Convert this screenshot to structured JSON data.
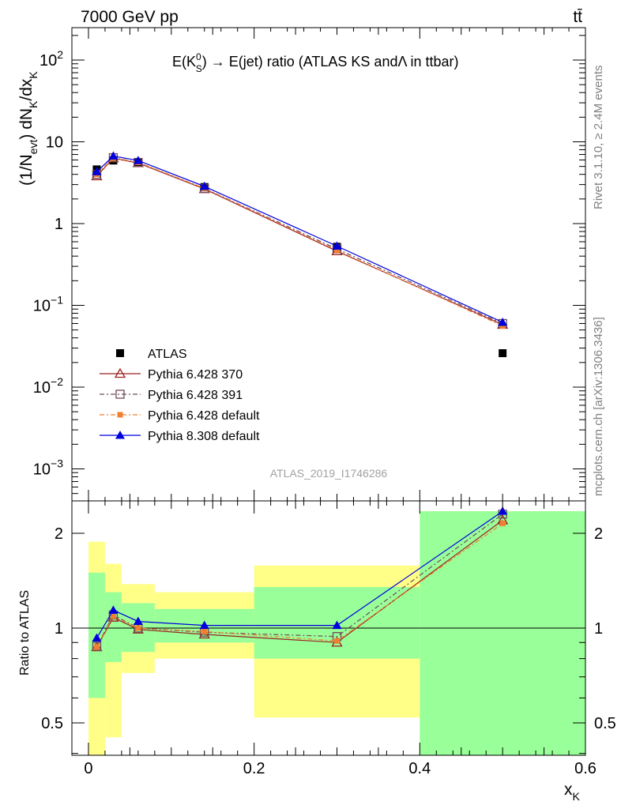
{
  "header": {
    "left": "7000 GeV pp",
    "right": "tt̄"
  },
  "side_labels": {
    "rivet": "Rivet 3.1.10, ≥ 2.4M events",
    "mcplots": "mcplots.cern.ch [arXiv:1306.3436]"
  },
  "chart_data": [
    {
      "type": "scatter",
      "panel": "main",
      "title": "E(K⁰_S) → E(jet) ratio (ATLAS KS and Λ in ttbar)",
      "title_parts": {
        "prefix": "E(K",
        "sup": "0",
        "sub": "S",
        "suffix": ") → E(jet) ratio (ATLAS KS andΛ in ttbar)"
      },
      "ylabel": "(1/N_evt) dN_K/dx_K",
      "ylabel_parts": {
        "a": "(1/N",
        "sub1": "evt",
        "b": ") dN",
        "sub2": "K",
        "c": "/dx",
        "sub3": "K"
      },
      "yscale": "log",
      "ylim": [
        0.0003,
        250
      ],
      "xlim": [
        -0.02,
        0.6
      ],
      "y_ticks": [
        {
          "v": 100,
          "base": "10",
          "exp": "2"
        },
        {
          "v": 10,
          "base": "10",
          "exp": ""
        },
        {
          "v": 1,
          "base": "1",
          "exp": ""
        },
        {
          "v": 0.1,
          "base": "10",
          "exp": "−1"
        },
        {
          "v": 0.01,
          "base": "10",
          "exp": "−2"
        },
        {
          "v": 0.001,
          "base": "10",
          "exp": "−3"
        }
      ],
      "watermark": "ATLAS_2019_I1746286",
      "legend_position": "bottom-left",
      "series": [
        {
          "name": "ATLAS",
          "color": "#000000",
          "marker": "square-filled",
          "dash": "none",
          "x": [
            0.01,
            0.03,
            0.06,
            0.14,
            0.3,
            0.5
          ],
          "y": [
            4.6,
            5.9,
            5.6,
            2.8,
            0.52,
            0.026
          ]
        },
        {
          "name": "Pythia 6.428 370",
          "color": "#9b2020",
          "marker": "triangle-open",
          "dash": "solid",
          "x": [
            0.01,
            0.03,
            0.06,
            0.14,
            0.3,
            0.5
          ],
          "y": [
            3.8,
            6.3,
            5.5,
            2.65,
            0.46,
            0.058
          ]
        },
        {
          "name": "Pythia 6.428 391",
          "color": "#6e4a5a",
          "marker": "square-open",
          "dash": "dashdot",
          "x": [
            0.01,
            0.03,
            0.06,
            0.14,
            0.3,
            0.5
          ],
          "y": [
            4.0,
            6.4,
            5.6,
            2.7,
            0.49,
            0.06
          ]
        },
        {
          "name": "Pythia 6.428 default",
          "color": "#f08030",
          "marker": "square-filled-small",
          "dash": "dashdot",
          "x": [
            0.01,
            0.03,
            0.06,
            0.14,
            0.3,
            0.5
          ],
          "y": [
            4.0,
            6.3,
            5.6,
            2.7,
            0.47,
            0.056
          ]
        },
        {
          "name": "Pythia 8.308 default",
          "color": "#0000dd",
          "marker": "triangle-filled",
          "dash": "solid",
          "x": [
            0.01,
            0.03,
            0.06,
            0.14,
            0.3,
            0.5
          ],
          "y": [
            4.3,
            6.7,
            5.9,
            2.85,
            0.53,
            0.062
          ]
        }
      ]
    },
    {
      "type": "line",
      "panel": "ratio",
      "ylabel": "Ratio to ATLAS",
      "xlabel": "x_K",
      "xlabel_parts": {
        "a": "x",
        "sub": "K"
      },
      "yscale": "log",
      "ylim": [
        0.35,
        2.35
      ],
      "xlim": [
        -0.02,
        0.6
      ],
      "y_ticks": [
        {
          "v": 0.5,
          "label": "0.5"
        },
        {
          "v": 1,
          "label": "1"
        },
        {
          "v": 2,
          "label": "2"
        }
      ],
      "x_ticks": [
        {
          "v": 0,
          "label": "0"
        },
        {
          "v": 0.2,
          "label": "0.2"
        },
        {
          "v": 0.4,
          "label": "0.4"
        },
        {
          "v": 0.6,
          "label": "0.6"
        }
      ],
      "bands": [
        {
          "x0": 0.0,
          "x1": 0.02,
          "yellow": [
            0.3,
            1.88
          ],
          "green": [
            0.6,
            1.5
          ]
        },
        {
          "x0": 0.02,
          "x1": 0.04,
          "yellow": [
            0.45,
            1.6
          ],
          "green": [
            0.78,
            1.3
          ]
        },
        {
          "x0": 0.04,
          "x1": 0.08,
          "yellow": [
            0.72,
            1.38
          ],
          "green": [
            0.84,
            1.2
          ]
        },
        {
          "x0": 0.08,
          "x1": 0.2,
          "yellow": [
            0.8,
            1.3
          ],
          "green": [
            0.9,
            1.15
          ]
        },
        {
          "x0": 0.2,
          "x1": 0.4,
          "yellow": [
            0.52,
            1.58
          ],
          "green": [
            0.8,
            1.35
          ]
        },
        {
          "x0": 0.4,
          "x1": 0.6,
          "yellow": [
            0.3,
            2.6
          ],
          "green": [
            0.3,
            2.6
          ]
        }
      ],
      "series": [
        {
          "name": "Pythia 6.428 370",
          "color": "#9b2020",
          "marker": "triangle-open",
          "dash": "solid",
          "x": [
            0.01,
            0.03,
            0.06,
            0.14,
            0.3,
            0.5
          ],
          "y": [
            0.87,
            1.08,
            0.99,
            0.955,
            0.9,
            2.2
          ]
        },
        {
          "name": "Pythia 6.428 391",
          "color": "#6e4a5a",
          "marker": "square-open",
          "dash": "dashdot",
          "x": [
            0.01,
            0.03,
            0.06,
            0.14,
            0.3,
            0.5
          ],
          "y": [
            0.875,
            1.1,
            1.0,
            0.97,
            0.94,
            2.3
          ]
        },
        {
          "name": "Pythia 6.428 default",
          "color": "#f08030",
          "marker": "square-filled-small",
          "dash": "dashdot",
          "x": [
            0.01,
            0.03,
            0.06,
            0.14,
            0.3,
            0.5
          ],
          "y": [
            0.87,
            1.09,
            1.0,
            0.975,
            0.91,
            2.15
          ]
        },
        {
          "name": "Pythia 8.308 default",
          "color": "#0000dd",
          "marker": "triangle-filled",
          "dash": "solid",
          "x": [
            0.01,
            0.03,
            0.06,
            0.14,
            0.3,
            0.5
          ],
          "y": [
            0.93,
            1.14,
            1.05,
            1.02,
            1.02,
            2.35
          ]
        }
      ]
    }
  ]
}
